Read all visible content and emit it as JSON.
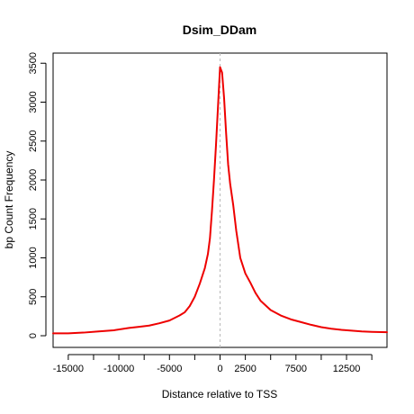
{
  "chart_data": {
    "type": "line",
    "title": "Dsim_DDam",
    "xlabel": "Distance relative to TSS",
    "ylabel": "bp Count Frequency",
    "xlim": [
      -16500,
      16500
    ],
    "ylim": [
      -150,
      3630
    ],
    "x_ticks": [
      -15000,
      -12500,
      -10000,
      -7500,
      -5000,
      -2500,
      0,
      2500,
      5000,
      7500,
      10000,
      12500,
      15000
    ],
    "x_tick_labels": [
      "-15000",
      "",
      "-10000",
      "",
      "-5000",
      "",
      "0",
      "2500",
      "",
      "7500",
      "",
      "12500",
      ""
    ],
    "y_ticks": [
      0,
      500,
      1000,
      1500,
      2000,
      2500,
      3000,
      3500
    ],
    "y_tick_labels": [
      "0",
      "500",
      "1000",
      "1500",
      "2000",
      "2500",
      "3000",
      "3500"
    ],
    "reference_line_x": 0,
    "grid": false,
    "series": [
      {
        "color": "#ee0000",
        "x": [
          -16500,
          -15000,
          -13500,
          -12000,
          -10500,
          -9000,
          -8000,
          -7000,
          -6000,
          -5000,
          -4000,
          -3500,
          -3000,
          -2500,
          -2000,
          -1500,
          -1200,
          -1000,
          -800,
          -600,
          -400,
          -200,
          0,
          200,
          400,
          600,
          800,
          1000,
          1300,
          1600,
          2000,
          2500,
          3000,
          3500,
          4000,
          5000,
          6000,
          7000,
          8000,
          9000,
          10000,
          11000,
          12000,
          13000,
          14000,
          15000,
          16500
        ],
        "y": [
          30,
          30,
          40,
          55,
          70,
          100,
          115,
          130,
          160,
          195,
          260,
          300,
          380,
          500,
          670,
          870,
          1050,
          1250,
          1600,
          2000,
          2450,
          2950,
          3450,
          3380,
          3050,
          2600,
          2200,
          1950,
          1680,
          1350,
          1000,
          800,
          680,
          550,
          450,
          330,
          260,
          210,
          175,
          140,
          110,
          90,
          75,
          65,
          55,
          50,
          45
        ]
      }
    ]
  }
}
